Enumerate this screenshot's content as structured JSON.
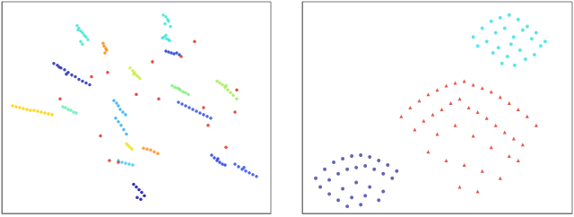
{
  "chart_data": [
    {
      "type": "scatter",
      "xlim": [
        0,
        300
      ],
      "ylim": [
        0,
        240
      ],
      "tick_labels": false,
      "grid": false,
      "series": [
        {
          "color": "#3ee6d8",
          "marker": "circle",
          "x": [
            180,
            183,
            185,
            186,
            182,
            188,
            181,
            184,
            187,
            179,
            183,
            186
          ],
          "values": [
            225,
            223,
            220,
            218,
            215,
            212,
            200,
            198,
            196,
            199,
            202,
            197
          ]
        },
        {
          "color": "#3ee6d8",
          "marker": "circle",
          "x": [
            84,
            86,
            88,
            90,
            92,
            94,
            96,
            88,
            90,
            85
          ],
          "values": [
            213,
            210,
            207,
            205,
            202,
            200,
            197,
            195,
            192,
            208
          ]
        },
        {
          "color": "#ff8c00",
          "marker": "circle",
          "x": [
            113,
            114,
            116,
            117,
            115
          ],
          "values": [
            193,
            190,
            187,
            185,
            182
          ]
        },
        {
          "color": "#2040d0",
          "marker": "circle",
          "x": [
            183,
            186,
            189,
            192,
            195,
            198
          ],
          "values": [
            184,
            183,
            182,
            181,
            182,
            180
          ]
        },
        {
          "color": "#1f2fb0",
          "marker": "circle",
          "x": [
            58,
            62,
            66,
            70,
            74,
            78,
            82,
            86,
            90,
            94,
            98,
            64,
            72
          ],
          "values": [
            170,
            168,
            165,
            163,
            160,
            157,
            155,
            152,
            150,
            148,
            146,
            166,
            158
          ]
        },
        {
          "color": "#c8f040",
          "marker": "circle",
          "x": [
            143,
            146,
            148,
            150,
            152,
            154,
            147
          ],
          "values": [
            165,
            162,
            160,
            157,
            155,
            153,
            158
          ]
        },
        {
          "color": "#80f080",
          "marker": "circle",
          "x": [
            190,
            193,
            196,
            199,
            202,
            205,
            208,
            198
          ],
          "values": [
            145,
            143,
            142,
            140,
            138,
            137,
            135,
            141
          ]
        },
        {
          "color": "#a0f050",
          "marker": "circle",
          "x": [
            240,
            243,
            246,
            249,
            252,
            255,
            258,
            262,
            250
          ],
          "values": [
            150,
            148,
            146,
            143,
            140,
            137,
            134,
            130,
            145
          ]
        },
        {
          "color": "#ffd000",
          "marker": "circle",
          "x": [
            12,
            16,
            20,
            24,
            28,
            32,
            36,
            40,
            44,
            48,
            52,
            56
          ],
          "values": [
            122,
            121,
            120,
            119,
            118,
            117,
            117,
            116,
            115,
            114,
            113,
            112
          ]
        },
        {
          "color": "#60f0b0",
          "marker": "circle",
          "x": [
            68,
            71,
            74,
            77,
            80,
            83
          ],
          "values": [
            121,
            120,
            118,
            117,
            115,
            114
          ]
        },
        {
          "color": "#3050e0",
          "marker": "circle",
          "x": [
            197,
            201,
            205,
            209,
            213,
            217,
            221,
            225,
            229,
            233
          ],
          "values": [
            126,
            124,
            122,
            120,
            118,
            116,
            114,
            112,
            110,
            108
          ]
        },
        {
          "color": "#30b0f0",
          "marker": "circle",
          "x": [
            125,
            128,
            130,
            132,
            135,
            138,
            127,
            130,
            133,
            136,
            139
          ],
          "values": [
            128,
            125,
            122,
            118,
            115,
            112,
            108,
            104,
            100,
            95,
            90
          ]
        },
        {
          "color": "#f0e020",
          "marker": "circle",
          "x": [
            139,
            141,
            143,
            145
          ],
          "values": [
            79,
            77,
            75,
            73
          ]
        },
        {
          "color": "#ff9020",
          "marker": "circle",
          "x": [
            158,
            162,
            166,
            170,
            174
          ],
          "values": [
            74,
            73,
            72,
            70,
            68
          ]
        },
        {
          "color": "#40c8f0",
          "marker": "circle",
          "x": [
            130,
            134,
            138,
            142,
            146
          ],
          "values": [
            60,
            58,
            57,
            56,
            55
          ]
        },
        {
          "color": "#2040e0",
          "marker": "circle",
          "x": [
            234,
            237,
            240,
            243,
            246,
            249,
            241
          ],
          "values": [
            66,
            63,
            60,
            58,
            56,
            55,
            62
          ]
        },
        {
          "color": "#3050e8",
          "marker": "circle",
          "x": [
            260,
            264,
            268,
            272,
            276,
            280,
            284,
            270
          ],
          "values": [
            56,
            53,
            50,
            48,
            46,
            44,
            42,
            52
          ]
        },
        {
          "color": "#1010a0",
          "marker": "circle",
          "x": [
            147,
            150,
            153,
            156,
            159,
            151,
            155
          ],
          "values": [
            33,
            30,
            27,
            24,
            20,
            18,
            16
          ]
        },
        {
          "color": "#e03020",
          "marker": "circle",
          "x": [
            100,
            118,
            150,
            168,
            175,
            215,
            225,
            260,
            262,
            230,
            120,
            65,
            110,
            130,
            200,
            250
          ],
          "values": [
            155,
            160,
            135,
            172,
            130,
            195,
            120,
            115,
            140,
            100,
            60,
            130,
            88,
            58,
            178,
            75
          ]
        }
      ]
    },
    {
      "type": "scatter",
      "xlim": [
        0,
        300
      ],
      "ylim": [
        0,
        240
      ],
      "tick_labels": false,
      "grid": false,
      "series": [
        {
          "color": "#40e0e8",
          "marker": "circle",
          "x": [
            190,
            200,
            210,
            220,
            230,
            240,
            250,
            260,
            270,
            205,
            215,
            225,
            235,
            245,
            255,
            265,
            195,
            212,
            228,
            242,
            258,
            222,
            236,
            248,
            218,
            232
          ],
          "values": [
            200,
            210,
            218,
            222,
            225,
            220,
            212,
            205,
            195,
            195,
            205,
            210,
            200,
            208,
            198,
            190,
            190,
            182,
            178,
            185,
            180,
            170,
            168,
            175,
            188,
            192
          ]
        },
        {
          "color": "#e03a2a",
          "marker": "triangle",
          "x": [
            110,
            120,
            130,
            140,
            150,
            160,
            170,
            180,
            190,
            200,
            210,
            220,
            230,
            240,
            250,
            260,
            125,
            135,
            145,
            155,
            165,
            175,
            185,
            195,
            205,
            215,
            225,
            235,
            245,
            150,
            170,
            190,
            210,
            230,
            160,
            180,
            200,
            220,
            140,
            240,
            195,
            175
          ],
          "values": [
            110,
            120,
            128,
            135,
            140,
            145,
            148,
            150,
            146,
            142,
            138,
            132,
            125,
            118,
            110,
            100,
            95,
            105,
            112,
            118,
            125,
            130,
            120,
            115,
            108,
            100,
            92,
            85,
            78,
            90,
            100,
            88,
            75,
            65,
            60,
            55,
            48,
            40,
            70,
            60,
            25,
            30
          ]
        },
        {
          "color": "#4a4aa8",
          "marker": "circle",
          "x": [
            15,
            25,
            35,
            45,
            55,
            65,
            75,
            85,
            95,
            105,
            20,
            30,
            40,
            50,
            60,
            70,
            80,
            90,
            100,
            30,
            45,
            60,
            75,
            90,
            40,
            55,
            70,
            85,
            50,
            65
          ],
          "values": [
            40,
            50,
            58,
            62,
            65,
            66,
            64,
            60,
            55,
            48,
            30,
            38,
            45,
            50,
            52,
            54,
            50,
            45,
            40,
            22,
            28,
            35,
            30,
            25,
            15,
            18,
            20,
            15,
            8,
            10
          ]
        }
      ]
    }
  ]
}
